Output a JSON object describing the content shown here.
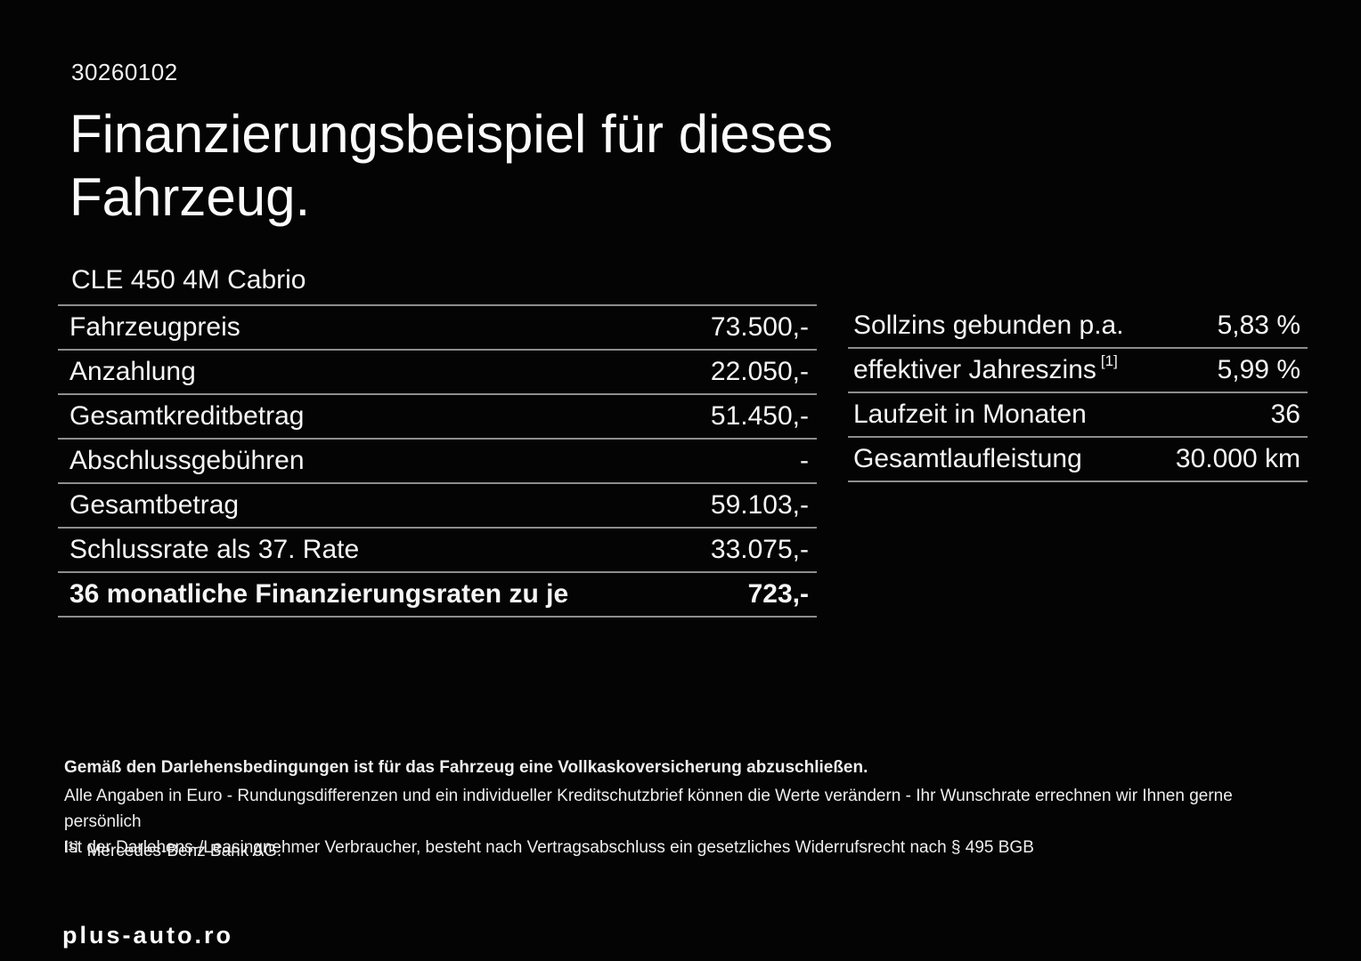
{
  "header": {
    "code": "30260102",
    "title": "Finanzierungsbeispiel für dieses Fahrzeug."
  },
  "vehicle": {
    "model": "CLE 450 4M Cabrio"
  },
  "finance_table": {
    "rows": [
      {
        "label": "Fahrzeugpreis",
        "value": "73.500,-"
      },
      {
        "label": "Anzahlung",
        "value": "22.050,-"
      },
      {
        "label": "Gesamtkreditbetrag",
        "value": "51.450,-"
      },
      {
        "label": "Abschlussgebühren",
        "value": "-"
      },
      {
        "label": "Gesamtbetrag",
        "value": "59.103,-"
      },
      {
        "label": "Schlussrate als 37. Rate",
        "value": "33.075,-"
      },
      {
        "label": "36 monatliche Finanzierungsraten zu je",
        "value": "723,-"
      }
    ]
  },
  "conditions_table": {
    "rows": [
      {
        "label": "Sollzins gebunden p.a.",
        "sup": "",
        "value": "5,83 %"
      },
      {
        "label": "effektiver Jahreszins",
        "sup": "[1]",
        "value": "5,99 %"
      },
      {
        "label": "Laufzeit in Monaten",
        "sup": "",
        "value": "36"
      },
      {
        "label": "Gesamtlaufleistung",
        "sup": "",
        "value": "30.000 km"
      }
    ]
  },
  "footer": {
    "line1": "Gemäß den Darlehensbedingungen ist für das Fahrzeug eine Vollkaskoversicherung abzuschließen.",
    "line2": "Alle Angaben in Euro - Rundungsdifferenzen und ein individueller Kreditschutzbrief können die Werte verändern - Ihr Wunschrate errechnen wir Ihnen gerne persönlich",
    "line3": "Ist der Darlehens-/Leasingnehmer Verbraucher, besteht nach Vertragsabschluss ein gesetzliches Widerrufsrecht nach § 495 BGB",
    "footnote_marker": "[1]",
    "footnote_text": "Mercedes-Benz Bank AG."
  },
  "watermark": {
    "label": "plus-auto.ro"
  },
  "colors": {
    "background": "#040404",
    "text": "#ffffff",
    "divider": "#8d8d8d"
  }
}
